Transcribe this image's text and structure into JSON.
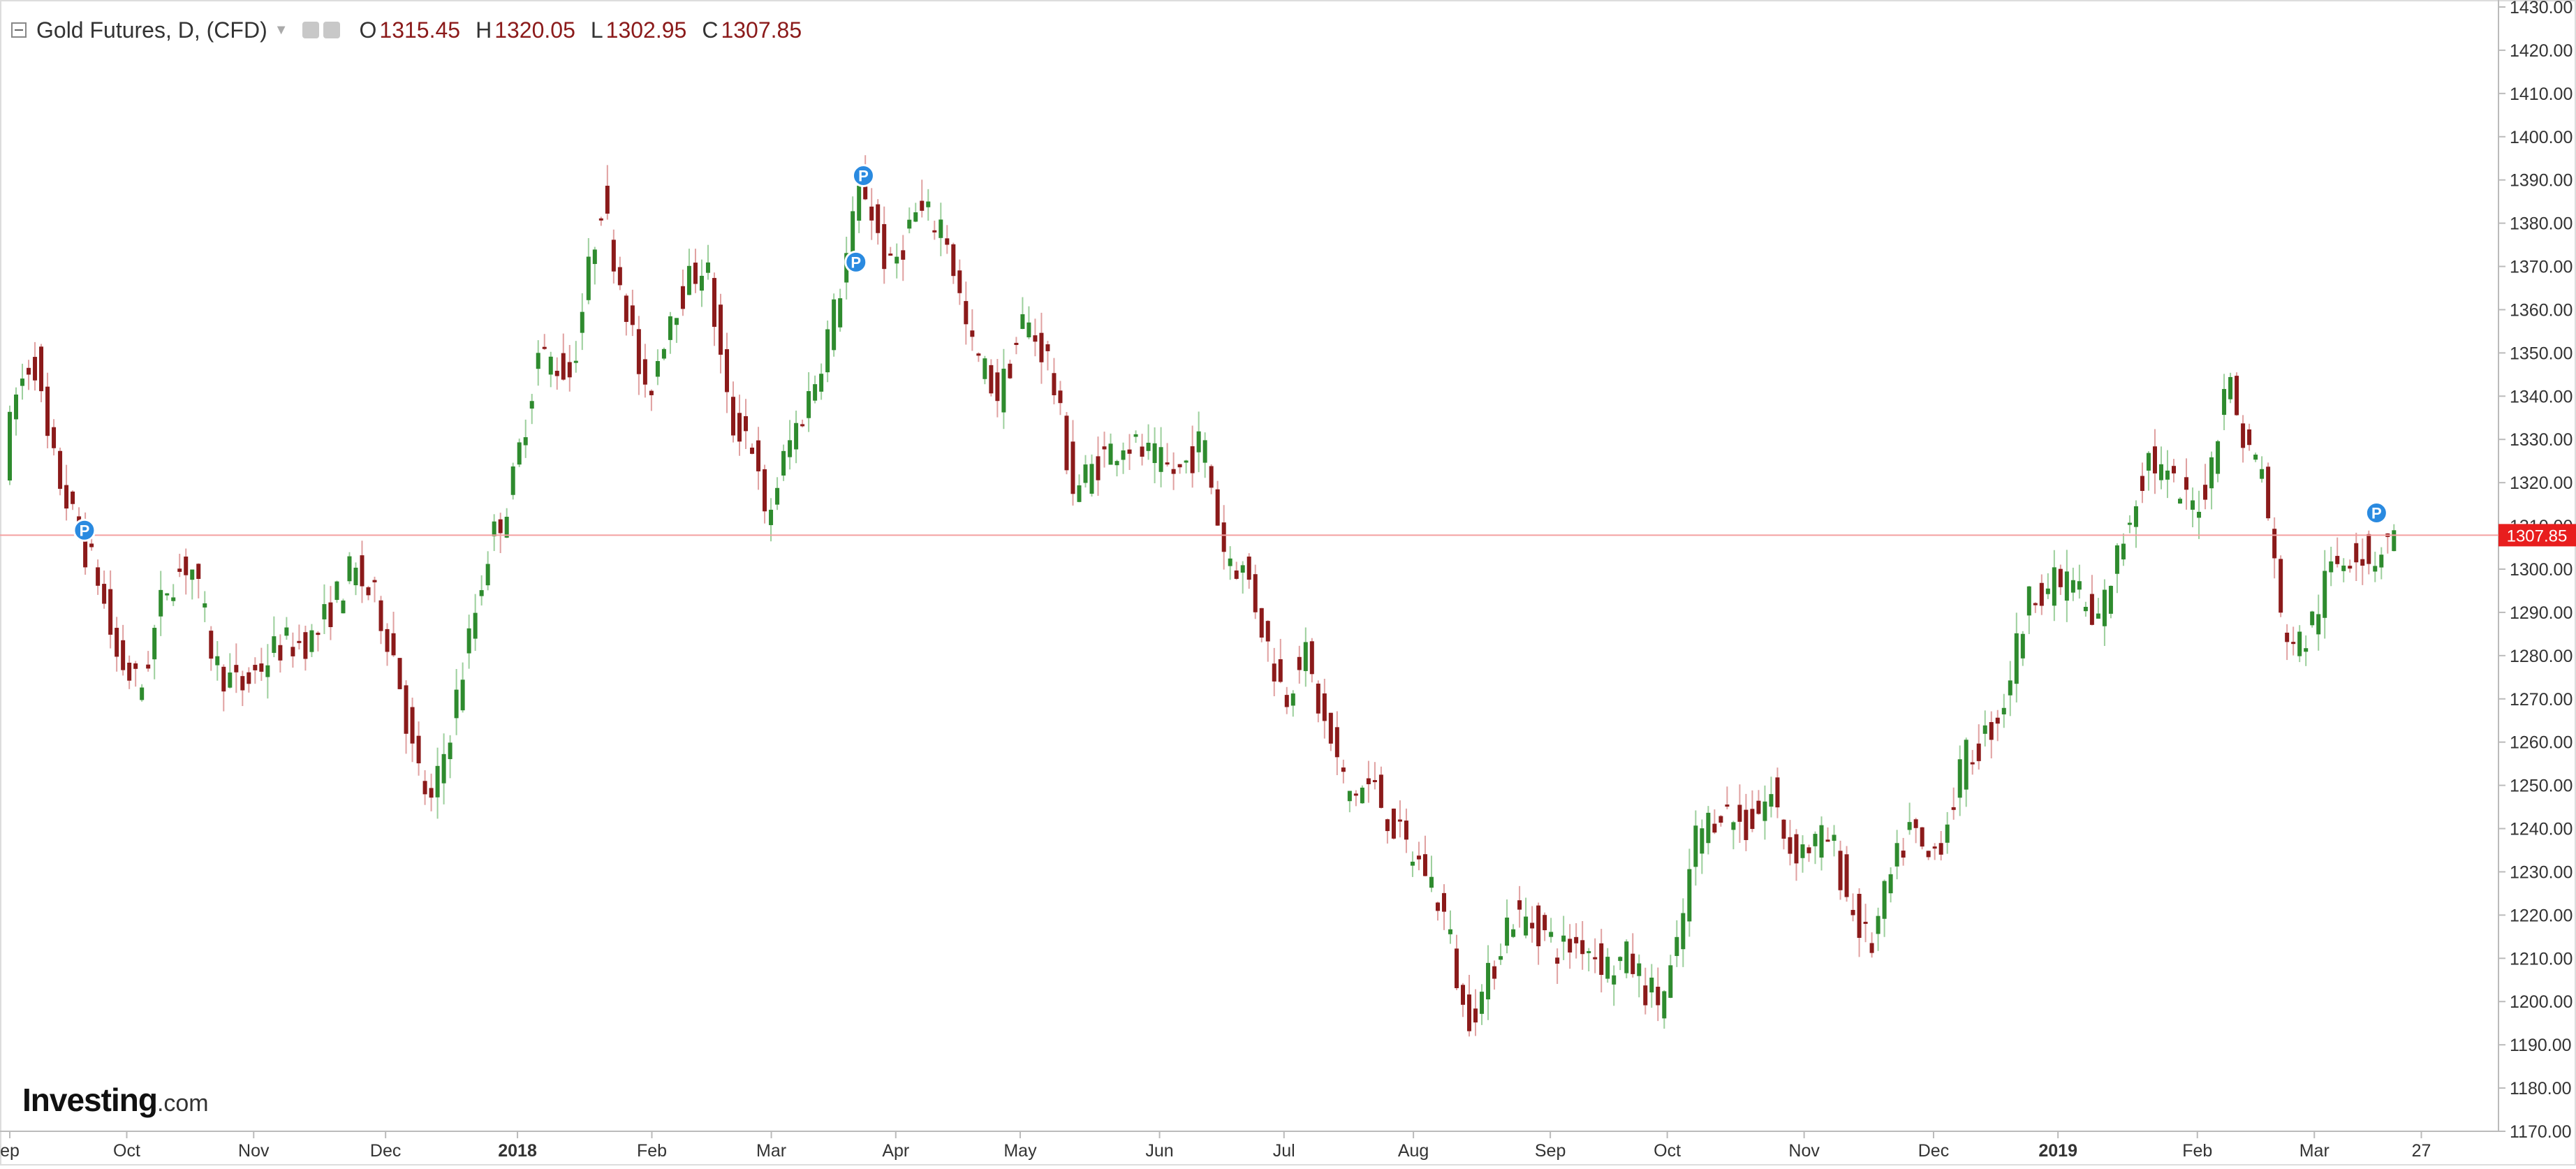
{
  "header": {
    "title": "Gold Futures, D, (CFD)",
    "open_label": "O",
    "open": "1315.45",
    "high_label": "H",
    "high": "1320.05",
    "low_label": "L",
    "low": "1302.95",
    "close_label": "C",
    "close": "1307.85"
  },
  "logo": {
    "main": "Investing",
    "suffix": ".com"
  },
  "chart_data": {
    "type": "candlestick",
    "title": "Gold Futures, D, (CFD)",
    "xlabel": "",
    "ylabel": "",
    "ylim": [
      1170,
      1430
    ],
    "y_ticks": [
      "1170.00",
      "1180.00",
      "1190.00",
      "1200.00",
      "1210.00",
      "1220.00",
      "1230.00",
      "1240.00",
      "1250.00",
      "1260.00",
      "1270.00",
      "1280.00",
      "1290.00",
      "1300.00",
      "1310.00",
      "1320.00",
      "1330.00",
      "1340.00",
      "1350.00",
      "1360.00",
      "1370.00",
      "1380.00",
      "1390.00",
      "1400.00",
      "1410.00",
      "1420.00",
      "1430.00"
    ],
    "x_ticks": [
      {
        "label": "ep",
        "pos": 0.0
      },
      {
        "label": "Oct",
        "pos": 0.047
      },
      {
        "label": "Nov",
        "pos": 0.098
      },
      {
        "label": "Dec",
        "pos": 0.151
      },
      {
        "label": "2018",
        "pos": 0.204,
        "bold": true
      },
      {
        "label": "Feb",
        "pos": 0.258
      },
      {
        "label": "Mar",
        "pos": 0.306
      },
      {
        "label": "Apr",
        "pos": 0.356
      },
      {
        "label": "May",
        "pos": 0.406
      },
      {
        "label": "Jun",
        "pos": 0.462
      },
      {
        "label": "Jul",
        "pos": 0.512
      },
      {
        "label": "Aug",
        "pos": 0.564
      },
      {
        "label": "Sep",
        "pos": 0.619
      },
      {
        "label": "Oct",
        "pos": 0.666
      },
      {
        "label": "Nov",
        "pos": 0.721
      },
      {
        "label": "Dec",
        "pos": 0.773
      },
      {
        "label": "2019",
        "pos": 0.823,
        "bold": true
      },
      {
        "label": "Feb",
        "pos": 0.879
      },
      {
        "label": "Mar",
        "pos": 0.926
      },
      {
        "label": "27",
        "pos": 0.969
      }
    ],
    "last_price": 1307.85,
    "last_price_label": "1307.85",
    "anchors": [
      [
        0.0,
        1325
      ],
      [
        0.005,
        1340
      ],
      [
        0.012,
        1350
      ],
      [
        0.018,
        1328
      ],
      [
        0.03,
        1308
      ],
      [
        0.038,
        1298
      ],
      [
        0.045,
        1280
      ],
      [
        0.055,
        1272
      ],
      [
        0.065,
        1296
      ],
      [
        0.075,
        1302
      ],
      [
        0.085,
        1278
      ],
      [
        0.095,
        1272
      ],
      [
        0.11,
        1282
      ],
      [
        0.125,
        1284
      ],
      [
        0.14,
        1300
      ],
      [
        0.15,
        1292
      ],
      [
        0.158,
        1278
      ],
      [
        0.165,
        1255
      ],
      [
        0.172,
        1245
      ],
      [
        0.182,
        1270
      ],
      [
        0.195,
        1305
      ],
      [
        0.204,
        1318
      ],
      [
        0.215,
        1350
      ],
      [
        0.228,
        1345
      ],
      [
        0.24,
        1385
      ],
      [
        0.25,
        1362
      ],
      [
        0.258,
        1338
      ],
      [
        0.268,
        1360
      ],
      [
        0.282,
        1372
      ],
      [
        0.292,
        1333
      ],
      [
        0.3,
        1332
      ],
      [
        0.306,
        1310
      ],
      [
        0.315,
        1328
      ],
      [
        0.325,
        1342
      ],
      [
        0.335,
        1362
      ],
      [
        0.345,
        1390
      ],
      [
        0.356,
        1368
      ],
      [
        0.366,
        1382
      ],
      [
        0.378,
        1380
      ],
      [
        0.388,
        1352
      ],
      [
        0.4,
        1340
      ],
      [
        0.41,
        1358
      ],
      [
        0.42,
        1348
      ],
      [
        0.43,
        1318
      ],
      [
        0.44,
        1325
      ],
      [
        0.45,
        1330
      ],
      [
        0.462,
        1325
      ],
      [
        0.472,
        1322
      ],
      [
        0.482,
        1330
      ],
      [
        0.49,
        1305
      ],
      [
        0.5,
        1298
      ],
      [
        0.508,
        1282
      ],
      [
        0.515,
        1270
      ],
      [
        0.522,
        1282
      ],
      [
        0.53,
        1265
      ],
      [
        0.54,
        1248
      ],
      [
        0.55,
        1250
      ],
      [
        0.557,
        1242
      ],
      [
        0.564,
        1235
      ],
      [
        0.572,
        1230
      ],
      [
        0.58,
        1218
      ],
      [
        0.587,
        1196
      ],
      [
        0.595,
        1202
      ],
      [
        0.605,
        1220
      ],
      [
        0.615,
        1218
      ],
      [
        0.625,
        1212
      ],
      [
        0.635,
        1214
      ],
      [
        0.645,
        1208
      ],
      [
        0.653,
        1210
      ],
      [
        0.66,
        1203
      ],
      [
        0.666,
        1200
      ],
      [
        0.672,
        1210
      ],
      [
        0.68,
        1238
      ],
      [
        0.69,
        1245
      ],
      [
        0.7,
        1240
      ],
      [
        0.71,
        1248
      ],
      [
        0.718,
        1235
      ],
      [
        0.726,
        1236
      ],
      [
        0.734,
        1238
      ],
      [
        0.742,
        1222
      ],
      [
        0.75,
        1212
      ],
      [
        0.758,
        1228
      ],
      [
        0.766,
        1240
      ],
      [
        0.773,
        1232
      ],
      [
        0.78,
        1240
      ],
      [
        0.788,
        1256
      ],
      [
        0.795,
        1260
      ],
      [
        0.803,
        1268
      ],
      [
        0.81,
        1285
      ],
      [
        0.816,
        1296
      ],
      [
        0.823,
        1296
      ],
      [
        0.832,
        1298
      ],
      [
        0.84,
        1285
      ],
      [
        0.848,
        1300
      ],
      [
        0.855,
        1314
      ],
      [
        0.862,
        1326
      ],
      [
        0.87,
        1320
      ],
      [
        0.879,
        1314
      ],
      [
        0.886,
        1320
      ],
      [
        0.893,
        1346
      ],
      [
        0.9,
        1330
      ],
      [
        0.908,
        1322
      ],
      [
        0.915,
        1288
      ],
      [
        0.922,
        1282
      ],
      [
        0.926,
        1285
      ],
      [
        0.935,
        1300
      ],
      [
        0.945,
        1305
      ],
      [
        0.952,
        1302
      ],
      [
        0.958,
        1308
      ]
    ],
    "markers": [
      {
        "label": "P",
        "pos": 0.03,
        "y": 1309
      },
      {
        "label": "P",
        "pos": 0.343,
        "y": 1391
      },
      {
        "label": "P",
        "pos": 0.34,
        "y": 1371
      },
      {
        "label": "P",
        "pos": 0.951,
        "y": 1313
      }
    ],
    "colors": {
      "up": "#2e8b2e",
      "down": "#8b1a1a",
      "axis": "#bbbbbb",
      "tick_text": "#333333",
      "price_line": "#f4a0a0",
      "price_tag": "#e81e1e",
      "marker": "#2a8ae0"
    }
  }
}
